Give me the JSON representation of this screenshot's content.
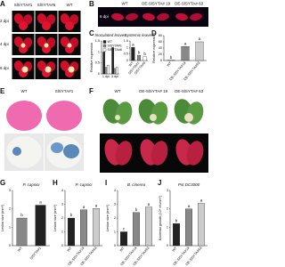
{
  "figure": {
    "A": {
      "label": "A",
      "columns": [
        "SlSYTA#1",
        "SlSYTA#6",
        "WT"
      ],
      "rows": [
        "2 dpi",
        "4 dpi",
        "6 dpi"
      ]
    },
    "B": {
      "label": "B",
      "columns": [
        "WT",
        "OE-SlSYTA# 19",
        "OE-SlSYTA# 63"
      ],
      "row": "6 dpi"
    },
    "E": {
      "label": "E",
      "columns": [
        "WT",
        "SlSYTA#1"
      ]
    },
    "F": {
      "label": "F",
      "columns": [
        "WT",
        "OE-SlSYTA# 19",
        "OE-SlSYTA# 63"
      ]
    }
  },
  "chart_data": [
    {
      "type": "bar",
      "panel": "C",
      "title": "Inoculated leaves",
      "ylabel": "Relative expression",
      "categories": [
        "1 dpi",
        "3 dpi"
      ],
      "series": [
        {
          "name": "WT",
          "color": "#222222",
          "values": [
            1,
            1.2
          ]
        },
        {
          "name": "SlSYTA#1",
          "color": "#888888",
          "values": [
            0.3,
            0.25
          ]
        },
        {
          "name": "SlSYTA#6",
          "color": "#ffffff",
          "values": [
            0.4,
            0.3
          ]
        }
      ],
      "ylim": [
        0,
        1.5
      ],
      "yticks": [
        0,
        0.5,
        1,
        1.5
      ]
    },
    {
      "type": "bar",
      "title": "Systemic leaves",
      "categories": [
        "WT",
        "SlSYTA#1",
        "SlSYTA#6"
      ],
      "values": [
        1,
        0.4,
        0.3
      ],
      "letters": [
        "a",
        "b",
        "b"
      ],
      "colors": [
        "#222222",
        "#888888",
        "#ffffff"
      ],
      "ylim": [
        0,
        1.5
      ],
      "yticks": [
        0,
        0.5,
        1,
        1.5
      ]
    },
    {
      "type": "bar",
      "panel": "D",
      "ylabel": "Relative expression",
      "categories": [
        "WT",
        "OE-SlSYTA#19",
        "OE-SlSYTA#63"
      ],
      "values": [
        1,
        45,
        60
      ],
      "letters": [
        "b",
        "a",
        "a"
      ],
      "colors": [
        "#222222",
        "#888888",
        "#cccccc"
      ],
      "ylim": [
        0,
        80
      ],
      "yticks": [
        0,
        20,
        40,
        60,
        80
      ]
    },
    {
      "type": "bar",
      "panel": "G",
      "title": "P. capsici",
      "ylabel": "Lesion size (mm²)",
      "categories": [
        "WT",
        "SlSYTA#1"
      ],
      "values": [
        1.5,
        2.2
      ],
      "letters": [
        "b",
        "a"
      ],
      "colors": [
        "#888888",
        "#222222"
      ],
      "ylim": [
        0,
        3
      ],
      "yticks": [
        0,
        1,
        2,
        3
      ]
    },
    {
      "type": "bar",
      "panel": "H",
      "title": "P. capsici",
      "ylabel": "Lesion size (mm²)",
      "categories": [
        "WT",
        "OE-SlSYTA#19",
        "OE-SlSYTA#63"
      ],
      "values": [
        2.0,
        2.6,
        2.7
      ],
      "letters": [
        "b",
        "a",
        "a"
      ],
      "colors": [
        "#222222",
        "#888888",
        "#cccccc"
      ],
      "ylim": [
        0,
        4
      ],
      "yticks": [
        0,
        1,
        2,
        3,
        4
      ]
    },
    {
      "type": "bar",
      "panel": "I",
      "title": "B. cinerea",
      "ylabel": "Lesion size (mm²)",
      "categories": [
        "WT",
        "OE-SlSYTA#19",
        "OE-SlSYTA#63"
      ],
      "values": [
        1.0,
        2.4,
        2.8
      ],
      "letters": [
        "c",
        "b",
        "a"
      ],
      "colors": [
        "#222222",
        "#888888",
        "#cccccc"
      ],
      "ylim": [
        0,
        4
      ],
      "yticks": [
        0,
        1,
        2,
        3,
        4
      ]
    },
    {
      "type": "bar",
      "panel": "J",
      "title": "Pst DC3000",
      "ylabel": "Bacterial growth (10⁴ cfu/cm²)",
      "categories": [
        "WT",
        "OE-SlSYTA#19",
        "OE-SlSYTA#63"
      ],
      "values": [
        1.2,
        2.0,
        2.3
      ],
      "letters": [
        "b",
        "a",
        "a"
      ],
      "colors": [
        "#222222",
        "#888888",
        "#cccccc"
      ],
      "ylim": [
        0,
        3
      ],
      "yticks": [
        0,
        1,
        2,
        3
      ]
    }
  ]
}
